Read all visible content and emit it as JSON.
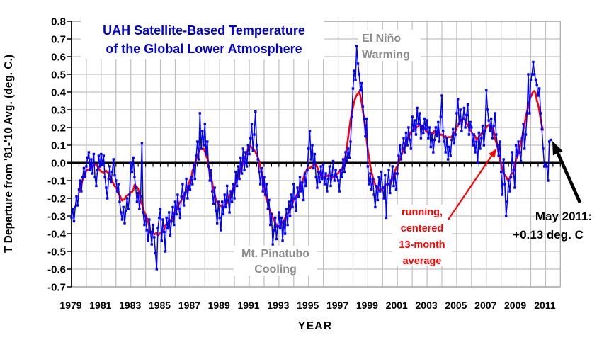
{
  "chart_data": {
    "type": "line",
    "title": {
      "line1": "UAH Satellite-Based Temperature",
      "line2": "of the Global Lower Atmosphere"
    },
    "xlabel": "YEAR",
    "ylabel": "T Departure from '81-'10 Avg. (deg. C.)",
    "ylim": [
      -0.7,
      0.8
    ],
    "y_tick_step": 0.1,
    "y_tick_labels": [
      "0.8",
      "0.7",
      "0.6",
      "0.5",
      "0.4",
      "0.3",
      "0.2",
      "0.1",
      "0.0",
      "-0.1",
      "-0.2",
      "-0.3",
      "-0.4",
      "-0.5",
      "-0.6",
      "-0.7"
    ],
    "x_tick_labels": [
      "1979",
      "1981",
      "1983",
      "1985",
      "1987",
      "1989",
      "1991",
      "1993",
      "1995",
      "1997",
      "1999",
      "2001",
      "2003",
      "2005",
      "2007",
      "2009",
      "2011"
    ],
    "grid": "both-on, light gray, vertical line each year, horizontal line each 0.1",
    "legend_position": "none",
    "colors": {
      "monthly_line": "#0000ff",
      "smoothed_line": "#ff0000",
      "title_text": "#0000dd",
      "gray_annotation": "#8c8c8c",
      "gridline": "#c0c0c0",
      "axis_text": "#000000",
      "zero_axis": "#000000"
    },
    "series": [
      {
        "name": "monthly-anomaly",
        "color": "#0000ff",
        "start_month": "1979-01",
        "end_month": "2011-05",
        "interval": "monthly",
        "values": [
          -0.31,
          -0.26,
          -0.33,
          -0.25,
          -0.19,
          -0.24,
          -0.15,
          -0.1,
          -0.16,
          -0.08,
          -0.03,
          -0.08,
          -0.02,
          0.03,
          0.06,
          -0.04,
          0.02,
          -0.06,
          0.05,
          -0.08,
          -0.13,
          -0.04,
          0.04,
          -0.02,
          0.05,
          -0.01,
          0.04,
          -0.08,
          -0.14,
          -0.2,
          -0.09,
          -0.02,
          -0.11,
          -0.05,
          0.02,
          -0.07,
          -0.1,
          -0.16,
          -0.12,
          -0.22,
          -0.28,
          -0.32,
          -0.25,
          -0.34,
          -0.27,
          -0.2,
          -0.26,
          -0.18,
          0.0,
          -0.05,
          0.03,
          -0.08,
          -0.14,
          -0.22,
          -0.17,
          -0.26,
          -0.19,
          0.11,
          -0.28,
          -0.35,
          -0.3,
          -0.38,
          -0.44,
          -0.32,
          -0.39,
          -0.46,
          -0.35,
          -0.42,
          -0.51,
          -0.6,
          -0.37,
          -0.31,
          -0.26,
          -0.44,
          -0.32,
          -0.39,
          -0.5,
          -0.31,
          -0.37,
          -0.28,
          -0.41,
          -0.33,
          -0.25,
          -0.35,
          -0.22,
          -0.29,
          -0.18,
          -0.26,
          -0.31,
          -0.19,
          -0.12,
          -0.24,
          -0.17,
          -0.09,
          -0.2,
          -0.13,
          -0.15,
          -0.08,
          -0.12,
          -0.01,
          -0.09,
          0.04,
          0.12,
          0.02,
          0.28,
          0.08,
          0.18,
          0.1,
          0.22,
          0.05,
          0.12,
          -0.02,
          -0.1,
          -0.04,
          -0.16,
          -0.23,
          -0.14,
          -0.27,
          -0.34,
          -0.22,
          -0.31,
          -0.38,
          -0.22,
          -0.29,
          -0.18,
          -0.25,
          -0.13,
          -0.21,
          -0.28,
          -0.16,
          -0.22,
          -0.12,
          -0.2,
          -0.05,
          -0.13,
          -0.02,
          -0.09,
          0.03,
          -0.06,
          0.08,
          -0.04,
          0.06,
          -0.02,
          0.1,
          0.05,
          0.14,
          0.22,
          0.07,
          0.16,
          0.29,
          0.1,
          0.02,
          -0.05,
          -0.12,
          -0.03,
          -0.16,
          -0.08,
          -0.18,
          -0.12,
          -0.26,
          -0.21,
          -0.35,
          -0.29,
          -0.46,
          -0.38,
          -0.31,
          -0.43,
          -0.36,
          -0.28,
          -0.37,
          -0.31,
          -0.44,
          -0.33,
          -0.4,
          -0.26,
          -0.35,
          -0.22,
          -0.3,
          -0.18,
          -0.25,
          -0.12,
          -0.2,
          -0.27,
          -0.14,
          -0.19,
          -0.08,
          -0.16,
          -0.11,
          -0.21,
          -0.06,
          -0.13,
          -0.04,
          0.08,
          0.18,
          0.02,
          0.1,
          -0.03,
          0.05,
          -0.08,
          -0.14,
          -0.05,
          -0.11,
          -0.02,
          -0.09,
          -0.01,
          -0.12,
          -0.06,
          -0.16,
          -0.09,
          -0.02,
          -0.13,
          -0.07,
          0.01,
          -0.1,
          -0.04,
          -0.08,
          -0.1,
          -0.16,
          -0.04,
          -0.08,
          0.02,
          -0.05,
          0.06,
          0.01,
          0.08,
          0.03,
          0.12,
          0.26,
          0.42,
          0.52,
          0.47,
          0.66,
          0.56,
          0.5,
          0.41,
          0.45,
          0.32,
          0.25,
          0.15,
          0.25,
          -0.02,
          -0.12,
          -0.06,
          -0.15,
          -0.09,
          -0.18,
          -0.25,
          -0.13,
          -0.21,
          -0.08,
          -0.16,
          -0.05,
          -0.14,
          -0.2,
          -0.07,
          -0.31,
          -0.12,
          -0.04,
          -0.17,
          -0.1,
          -0.02,
          -0.13,
          -0.06,
          -0.15,
          -0.06,
          0.04,
          0.1,
          0.02,
          0.08,
          0.14,
          0.06,
          0.17,
          0.1,
          0.2,
          0.13,
          0.08,
          0.26,
          0.18,
          0.24,
          0.16,
          0.31,
          0.22,
          0.28,
          0.14,
          0.21,
          0.17,
          0.25,
          0.19,
          0.24,
          0.14,
          0.2,
          0.09,
          0.16,
          0.06,
          0.13,
          0.2,
          0.15,
          0.23,
          0.12,
          0.26,
          0.38,
          0.18,
          0.12,
          0.06,
          0.14,
          0.02,
          0.09,
          0.04,
          0.13,
          0.19,
          0.11,
          0.16,
          0.28,
          0.36,
          0.22,
          0.3,
          0.18,
          0.25,
          0.31,
          0.2,
          0.27,
          0.33,
          0.16,
          0.23,
          0.2,
          0.1,
          0.16,
          0.06,
          0.12,
          0.0,
          0.17,
          0.08,
          0.14,
          0.21,
          0.1,
          0.18,
          0.41,
          0.3,
          0.24,
          0.18,
          0.25,
          0.14,
          0.21,
          0.28,
          0.16,
          0.1,
          0.04,
          0.12,
          -0.05,
          -0.18,
          0.02,
          -0.12,
          -0.3,
          -0.22,
          -0.1,
          -0.16,
          -0.08,
          0.06,
          -0.04,
          -0.14,
          0.1,
          0.04,
          0.12,
          0.06,
          0.01,
          0.14,
          0.22,
          0.08,
          0.16,
          0.28,
          0.5,
          0.28,
          0.47,
          0.5,
          0.57,
          0.5,
          0.47,
          0.44,
          0.38,
          0.42,
          0.28,
          0.19,
          0.08,
          -0.02,
          -0.01,
          -0.02,
          -0.1,
          0.12,
          0.13
        ]
      },
      {
        "name": "running-centered-13-month-average",
        "color": "#ff0000",
        "derived_from": "monthly-anomaly",
        "window_months": 13
      }
    ],
    "annotations": {
      "el_nino": {
        "line1": "El Niño",
        "line2": "Warming",
        "color": "#8c8c8c"
      },
      "pinatubo": {
        "line1": "Mt. Pinatubo",
        "line2": "Cooling",
        "color": "#8c8c8c"
      },
      "running_avg": {
        "line1": "running,",
        "line2": "centered",
        "line3": "13-month",
        "line4": "average",
        "color": "#ff0000"
      },
      "latest_point": {
        "line1": "May 2011:",
        "line2": "+0.13 deg. C",
        "color": "#000000"
      }
    }
  }
}
